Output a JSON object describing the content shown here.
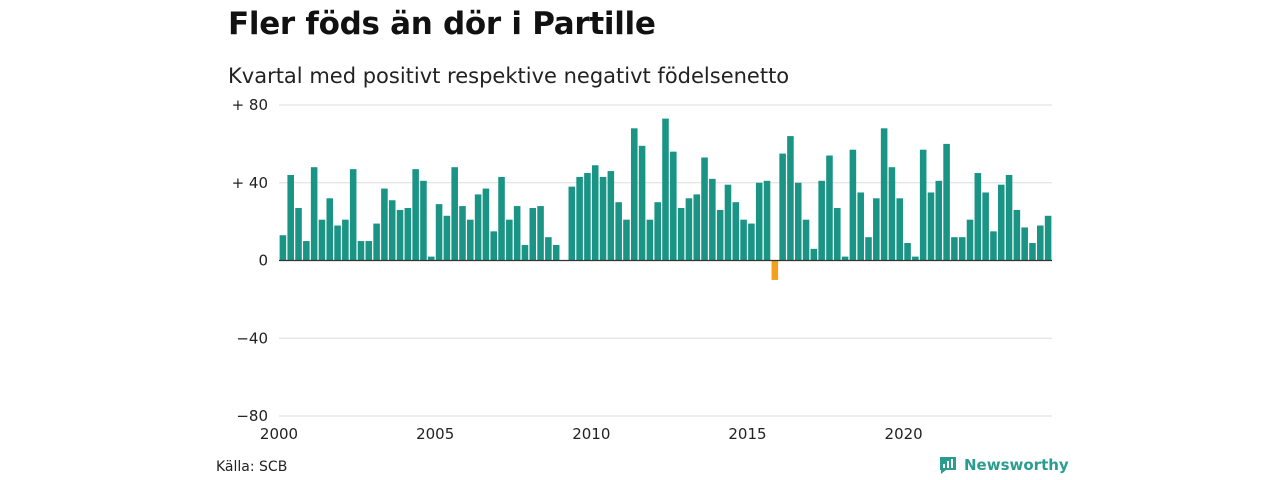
{
  "title": "Fler föds än dör i Partille",
  "subtitle": "Kvartal med positivt respektive negativt födelsenetto",
  "source": "Källa: SCB",
  "brand": {
    "name": "Newsworthy",
    "icon": "newsworthy-logo-icon"
  },
  "colors": {
    "positive": "#1a9485",
    "negative": "#f5a01a",
    "grid": "#dddddd",
    "zero_line": "#333333",
    "brand": "#2a9d8f"
  },
  "chart_data": {
    "type": "bar",
    "xlabel": "",
    "ylabel": "",
    "x_start": 2000,
    "periods_per_year": 4,
    "ylim": [
      -80,
      80
    ],
    "y_ticks": [
      80,
      40,
      0,
      -40,
      -80
    ],
    "y_tick_labels": [
      "+ 80",
      "+ 40",
      "0",
      "−40",
      "−80"
    ],
    "x_ticks": [
      2000,
      2005,
      2010,
      2015,
      2020
    ],
    "x_tick_labels": [
      "2000",
      "2005",
      "2010",
      "2015",
      "2020"
    ],
    "grid": true,
    "legend": "none",
    "values": [
      13,
      44,
      27,
      10,
      48,
      21,
      32,
      18,
      21,
      47,
      10,
      10,
      19,
      37,
      31,
      26,
      27,
      47,
      41,
      2,
      29,
      23,
      48,
      28,
      21,
      34,
      37,
      15,
      43,
      21,
      28,
      8,
      27,
      28,
      12,
      8,
      0,
      38,
      43,
      45,
      49,
      43,
      46,
      30,
      21,
      68,
      59,
      21,
      30,
      73,
      56,
      27,
      32,
      34,
      53,
      42,
      26,
      39,
      30,
      21,
      19,
      40,
      41,
      -10,
      55,
      64,
      40,
      21,
      6,
      41,
      54,
      27,
      2,
      57,
      35,
      12,
      32,
      68,
      48,
      32,
      9,
      2,
      57,
      35,
      41,
      60,
      12,
      12,
      21,
      45,
      35,
      15,
      39,
      44,
      26,
      17,
      9,
      18,
      23
    ]
  }
}
